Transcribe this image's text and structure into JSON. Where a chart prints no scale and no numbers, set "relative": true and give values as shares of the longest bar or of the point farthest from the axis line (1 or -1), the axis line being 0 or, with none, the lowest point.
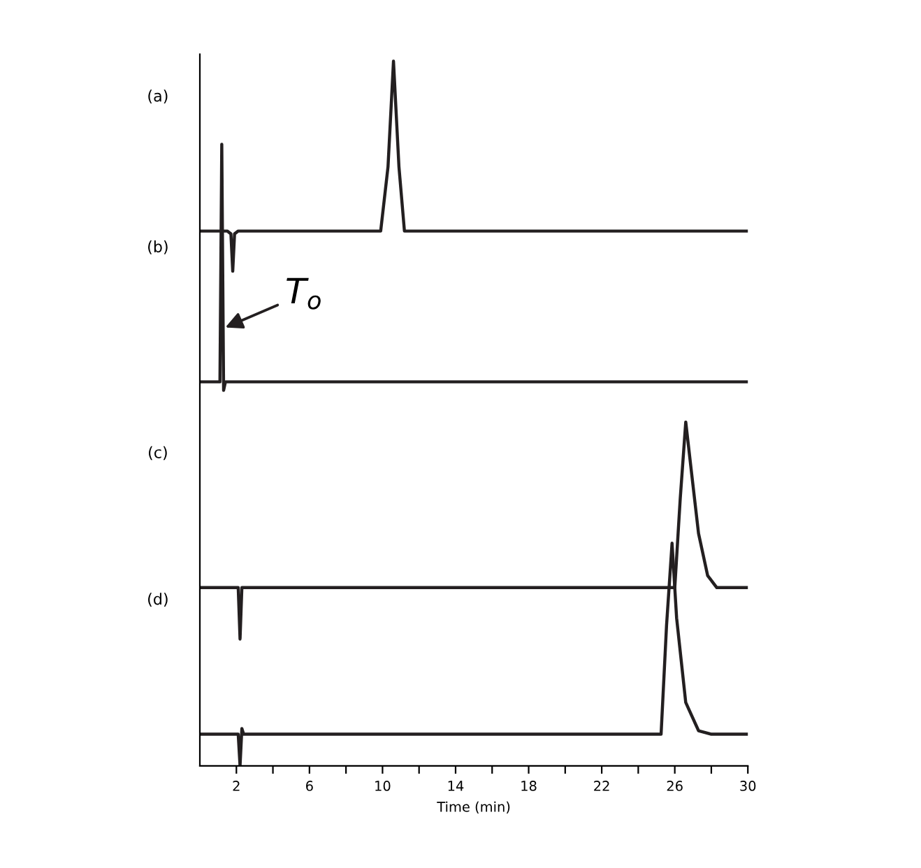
{
  "chart_data": {
    "type": "line",
    "relative": true,
    "xlabel": "Time (min)",
    "xlim": [
      0,
      30
    ],
    "xticks": [
      2,
      {
        "value": 4,
        "label": null
      },
      6,
      {
        "value": 8,
        "label": null
      },
      10,
      {
        "value": 12,
        "label": null
      },
      14,
      {
        "value": 16,
        "label": null
      },
      18,
      {
        "value": 20,
        "label": null
      },
      22,
      {
        "value": 24,
        "label": null
      },
      26,
      {
        "value": 28,
        "label": null
      },
      30
    ],
    "grid": false,
    "legend": false,
    "marker": "none",
    "line_style": "solid",
    "tick_labels": "x",
    "series": [
      {
        "color": "#231f20",
        "x": [
          0,
          0.6,
          1.5,
          1.7,
          1.8,
          1.9,
          2.1,
          9.9,
          10.3,
          10.6,
          10.9,
          11.2,
          30
        ],
        "values": [
          0.759,
          0.759,
          0.759,
          0.755,
          0.702,
          0.755,
          0.759,
          0.759,
          0.85,
          1.0,
          0.85,
          0.759,
          0.759
        ]
      },
      {
        "color": "#231f20",
        "x": [
          0,
          1.1,
          1.2,
          1.3,
          1.4,
          30
        ],
        "values": [
          0.545,
          0.545,
          0.882,
          0.533,
          0.545,
          0.545
        ]
      },
      {
        "color": "#231f20",
        "x": [
          0,
          2.1,
          2.2,
          2.3,
          2.4,
          26.0,
          26.3,
          26.6,
          26.9,
          27.3,
          27.8,
          28.3,
          30
        ],
        "values": [
          0.253,
          0.253,
          0.18,
          0.253,
          0.253,
          0.253,
          0.38,
          0.488,
          0.42,
          0.33,
          0.27,
          0.253,
          0.253
        ]
      },
      {
        "color": "#231f20",
        "x": [
          0,
          2.1,
          2.2,
          2.3,
          2.4,
          25.25,
          25.55,
          25.85,
          26.1,
          26.6,
          27.3,
          28,
          30
        ],
        "values": [
          0.045,
          0.045,
          0.0,
          0.053,
          0.045,
          0.045,
          0.2,
          0.316,
          0.21,
          0.09,
          0.05,
          0.045,
          0.045
        ]
      }
    ],
    "annotations": [
      "(a)",
      "(b)",
      "(c)",
      "(d)",
      {
        "text": "T$_{o}$",
        "x": 1.2,
        "y": 0.62
      }
    ]
  }
}
